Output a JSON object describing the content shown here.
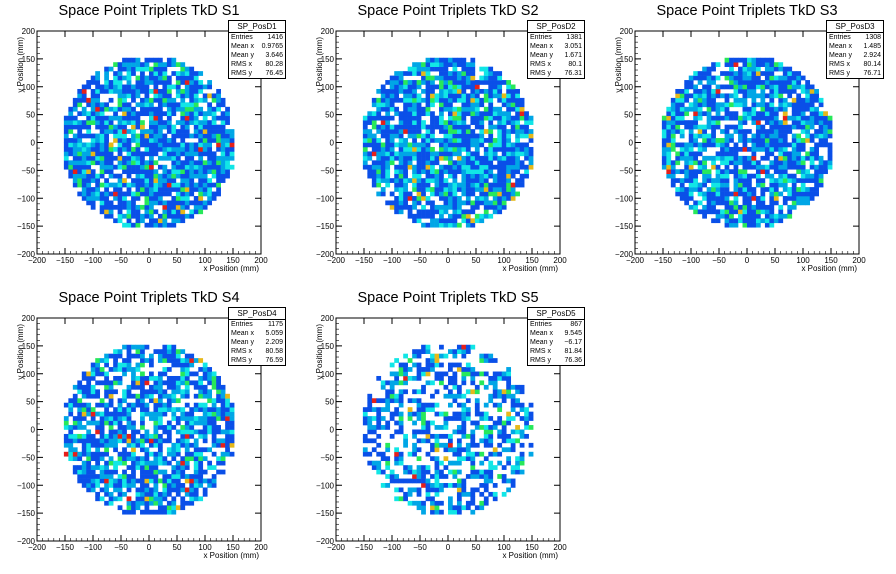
{
  "chart_data": [
    {
      "type": "heatmap",
      "title": "Space Point Triplets TkD S1",
      "xlabel": "x Position (mm)",
      "ylabel": "y Position (mm)",
      "xlim": [
        -200,
        200
      ],
      "ylim": [
        -200,
        200
      ],
      "xticks": [
        "−200",
        "−150",
        "−100",
        "−50",
        "0",
        "50",
        "100",
        "150",
        "200"
      ],
      "yticks": [
        "−200",
        "−150",
        "−100",
        "−50",
        "0",
        "50",
        "100",
        "150",
        "200"
      ],
      "stats": {
        "name": "SP_PosD1",
        "rows": [
          {
            "label": "Entries",
            "value": "1416"
          },
          {
            "label": "Mean x",
            "value": "0.9765"
          },
          {
            "label": "Mean y",
            "value": "3.646"
          },
          {
            "label": "RMS x",
            "value": "80.28"
          },
          {
            "label": "RMS y",
            "value": "76.45"
          }
        ]
      },
      "footprint": {
        "center": [
          0,
          0
        ],
        "radius": 155,
        "fill_fraction": 0.85,
        "seed": 11
      }
    },
    {
      "type": "heatmap",
      "title": "Space Point Triplets TkD S2",
      "xlabel": "x Position (mm)",
      "ylabel": "y Position (mm)",
      "xlim": [
        -200,
        200
      ],
      "ylim": [
        -200,
        200
      ],
      "xticks": [
        "−200",
        "−150",
        "−100",
        "−50",
        "0",
        "50",
        "100",
        "150",
        "200"
      ],
      "yticks": [
        "−200",
        "−150",
        "−100",
        "−50",
        "0",
        "50",
        "100",
        "150",
        "200"
      ],
      "stats": {
        "name": "SP_PosD2",
        "rows": [
          {
            "label": "Entries",
            "value": "1381"
          },
          {
            "label": "Mean x",
            "value": "3.051"
          },
          {
            "label": "Mean y",
            "value": "1.671"
          },
          {
            "label": "RMS x",
            "value": "80.1"
          },
          {
            "label": "RMS y",
            "value": "76.31"
          }
        ]
      },
      "footprint": {
        "center": [
          0,
          0
        ],
        "radius": 155,
        "fill_fraction": 0.83,
        "seed": 23
      }
    },
    {
      "type": "heatmap",
      "title": "Space Point Triplets TkD S3",
      "xlabel": "x Position (mm)",
      "ylabel": "y Position (mm)",
      "xlim": [
        -200,
        200
      ],
      "ylim": [
        -200,
        200
      ],
      "xticks": [
        "−200",
        "−150",
        "−100",
        "−50",
        "0",
        "50",
        "100",
        "150",
        "200"
      ],
      "yticks": [
        "−200",
        "−150",
        "−100",
        "−50",
        "0",
        "50",
        "100",
        "150",
        "200"
      ],
      "stats": {
        "name": "SP_PosD3",
        "rows": [
          {
            "label": "Entries",
            "value": "1308"
          },
          {
            "label": "Mean x",
            "value": "1.485"
          },
          {
            "label": "Mean y",
            "value": "2.924"
          },
          {
            "label": "RMS x",
            "value": "80.14"
          },
          {
            "label": "RMS y",
            "value": "76.71"
          }
        ]
      },
      "footprint": {
        "center": [
          0,
          0
        ],
        "radius": 155,
        "fill_fraction": 0.8,
        "seed": 37
      }
    },
    {
      "type": "heatmap",
      "title": "Space Point Triplets TkD S4",
      "xlabel": "x Position (mm)",
      "ylabel": "y Position (mm)",
      "xlim": [
        -200,
        200
      ],
      "ylim": [
        -200,
        200
      ],
      "xticks": [
        "−200",
        "−150",
        "−100",
        "−50",
        "0",
        "50",
        "100",
        "150",
        "200"
      ],
      "yticks": [
        "−200",
        "−150",
        "−100",
        "−50",
        "0",
        "50",
        "100",
        "150",
        "200"
      ],
      "stats": {
        "name": "SP_PosD4",
        "rows": [
          {
            "label": "Entries",
            "value": "1175"
          },
          {
            "label": "Mean x",
            "value": "5.059"
          },
          {
            "label": "Mean y",
            "value": "2.209"
          },
          {
            "label": "RMS x",
            "value": "80.58"
          },
          {
            "label": "RMS y",
            "value": "76.59"
          }
        ]
      },
      "footprint": {
        "center": [
          0,
          0
        ],
        "radius": 155,
        "fill_fraction": 0.76,
        "seed": 41
      }
    },
    {
      "type": "heatmap",
      "title": "Space Point Triplets TkD S5",
      "xlabel": "x Position (mm)",
      "ylabel": "y Position (mm)",
      "xlim": [
        -200,
        200
      ],
      "ylim": [
        -200,
        200
      ],
      "xticks": [
        "−200",
        "−150",
        "−100",
        "−50",
        "0",
        "50",
        "100",
        "150",
        "200"
      ],
      "yticks": [
        "−200",
        "−150",
        "−100",
        "−50",
        "0",
        "50",
        "100",
        "150",
        "200"
      ],
      "stats": {
        "name": "SP_PosD5",
        "rows": [
          {
            "label": "Entries",
            "value": "867"
          },
          {
            "label": "Mean x",
            "value": "9.545"
          },
          {
            "label": "Mean y",
            "value": "−6.17"
          },
          {
            "label": "RMS x",
            "value": "81.84"
          },
          {
            "label": "RMS y",
            "value": "76.36"
          }
        ]
      },
      "footprint": {
        "center": [
          0,
          0
        ],
        "radius": 155,
        "fill_fraction": 0.52,
        "seed": 53
      }
    }
  ],
  "colors": {
    "palette": [
      "#0a4fe8",
      "#00a6e6",
      "#11e6e6",
      "#27e85a",
      "#e6b81a",
      "#e6201a"
    ],
    "axis": "#000000",
    "background": "#ffffff"
  }
}
